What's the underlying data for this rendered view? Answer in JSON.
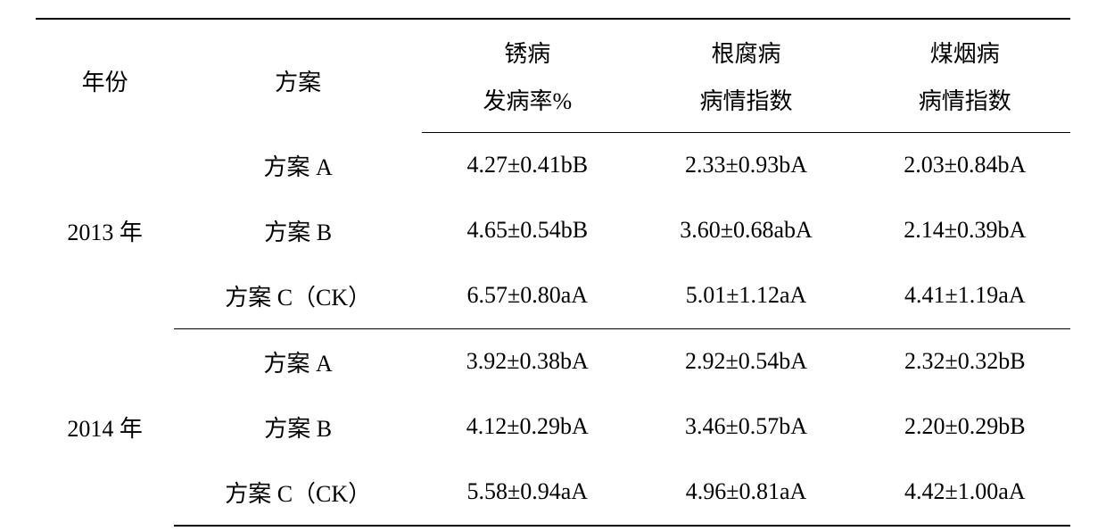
{
  "table": {
    "type": "table",
    "background_color": "#ffffff",
    "text_color": "#000000",
    "border_color": "#000000",
    "font_size": 26,
    "top_border_width": 2,
    "mid_border_width": 1.5,
    "bottom_border_width": 2,
    "columns": [
      {
        "key": "year",
        "header_line1": "年份",
        "header_line2": "",
        "width_pct": 16
      },
      {
        "key": "scheme",
        "header_line1": "方案",
        "header_line2": "",
        "width_pct": 20
      },
      {
        "key": "rust",
        "header_line1": "锈病",
        "header_line2": "发病率%",
        "width_pct": 22
      },
      {
        "key": "root_rot",
        "header_line1": "根腐病",
        "header_line2": "病情指数",
        "width_pct": 22
      },
      {
        "key": "sooty_mold",
        "header_line1": "煤烟病",
        "header_line2": "病情指数",
        "width_pct": 20
      }
    ],
    "groups": [
      {
        "year": "2013 年",
        "rows": [
          {
            "scheme": "方案 A",
            "rust": "4.27±0.41bB",
            "root_rot": "2.33±0.93bA",
            "sooty_mold": "2.03±0.84bA"
          },
          {
            "scheme": "方案 B",
            "rust": "4.65±0.54bB",
            "root_rot": "3.60±0.68abA",
            "sooty_mold": "2.14±0.39bA"
          },
          {
            "scheme": "方案 C（CK）",
            "rust": "6.57±0.80aA",
            "root_rot": "5.01±1.12aA",
            "sooty_mold": "4.41±1.19aA"
          }
        ]
      },
      {
        "year": "2014 年",
        "rows": [
          {
            "scheme": "方案 A",
            "rust": "3.92±0.38bA",
            "root_rot": "2.92±0.54bA",
            "sooty_mold": "2.32±0.32bB"
          },
          {
            "scheme": "方案 B",
            "rust": "4.12±0.29bA",
            "root_rot": "3.46±0.57bA",
            "sooty_mold": "2.20±0.29bB"
          },
          {
            "scheme": "方案 C（CK）",
            "rust": "5.58±0.94aA",
            "root_rot": "4.96±0.81aA",
            "sooty_mold": "4.42±1.00aA"
          }
        ]
      }
    ]
  }
}
